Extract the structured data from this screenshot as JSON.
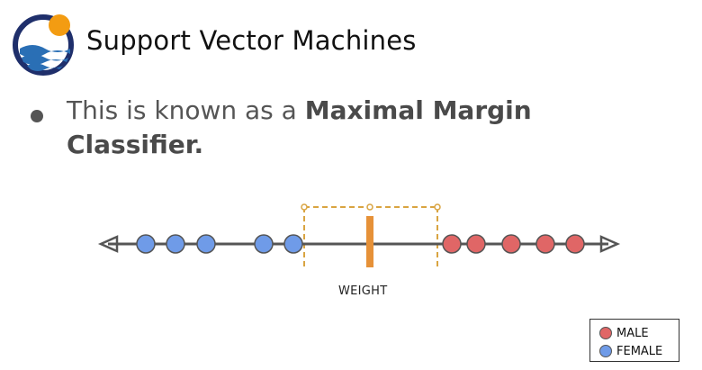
{
  "header": {
    "title": "Support Vector Machines"
  },
  "bullet": {
    "text_normal": "This is known as a ",
    "text_bold": "Maximal Margin Classifier."
  },
  "diagram": {
    "axis_label": "WEIGHT",
    "female_points_count": 5,
    "male_points_count": 5,
    "colors": {
      "female": "#6f9be8",
      "male": "#e06666",
      "threshold": "#e69138",
      "axis": "#555555",
      "margin": "#d9a441"
    }
  },
  "legend": {
    "male_label": "MALE",
    "female_label": "FEMALE"
  },
  "logo": {
    "icon": "sun-over-waves-logo",
    "colors": {
      "ring": "#1f2f6b",
      "sun": "#f39c12",
      "wave": "#2a6fb5"
    }
  }
}
